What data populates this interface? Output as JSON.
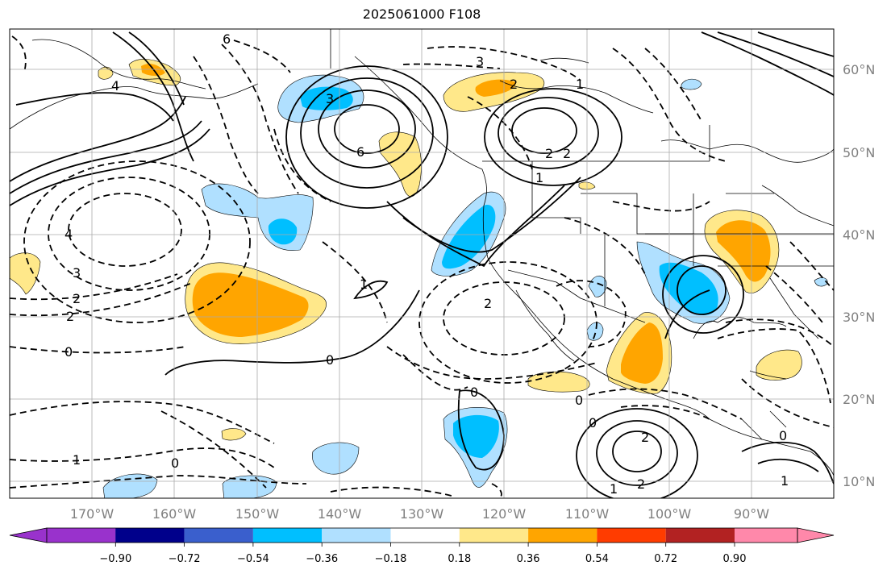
{
  "title": "2025061000 F108",
  "map": {
    "lon_range": [
      -180,
      -80
    ],
    "lat_range": [
      8,
      65
    ],
    "lon_ticks": [
      "170°W",
      "160°W",
      "150°W",
      "140°W",
      "130°W",
      "120°W",
      "110°W",
      "100°W",
      "90°W"
    ],
    "lat_ticks": [
      "60°N",
      "50°N",
      "40°N",
      "30°N",
      "20°N",
      "10°N"
    ],
    "grid": true,
    "contour_labels": [
      "6",
      "3",
      "4",
      "6",
      "3",
      "2",
      "1",
      "2",
      "2",
      "1",
      "4",
      "3",
      "2",
      "2",
      "0",
      "1",
      "0",
      "2",
      "0",
      "0",
      "2",
      "2",
      "1",
      "0",
      "0",
      "1",
      "1",
      "0"
    ]
  },
  "colorbar": {
    "orientation": "horizontal",
    "extend": "both",
    "colors": [
      "#9932cc",
      "#00008b",
      "#3a5fcd",
      "#00bfff",
      "#b0e0ff",
      "#ffffff",
      "#ffe88a",
      "#ffa500",
      "#ff3c00",
      "#b22222",
      "#ff88aa"
    ],
    "tick_labels": [
      "−0.90",
      "−0.72",
      "−0.54",
      "−0.36",
      "−0.18",
      "0.18",
      "0.36",
      "0.54",
      "0.72",
      "0.90"
    ]
  }
}
